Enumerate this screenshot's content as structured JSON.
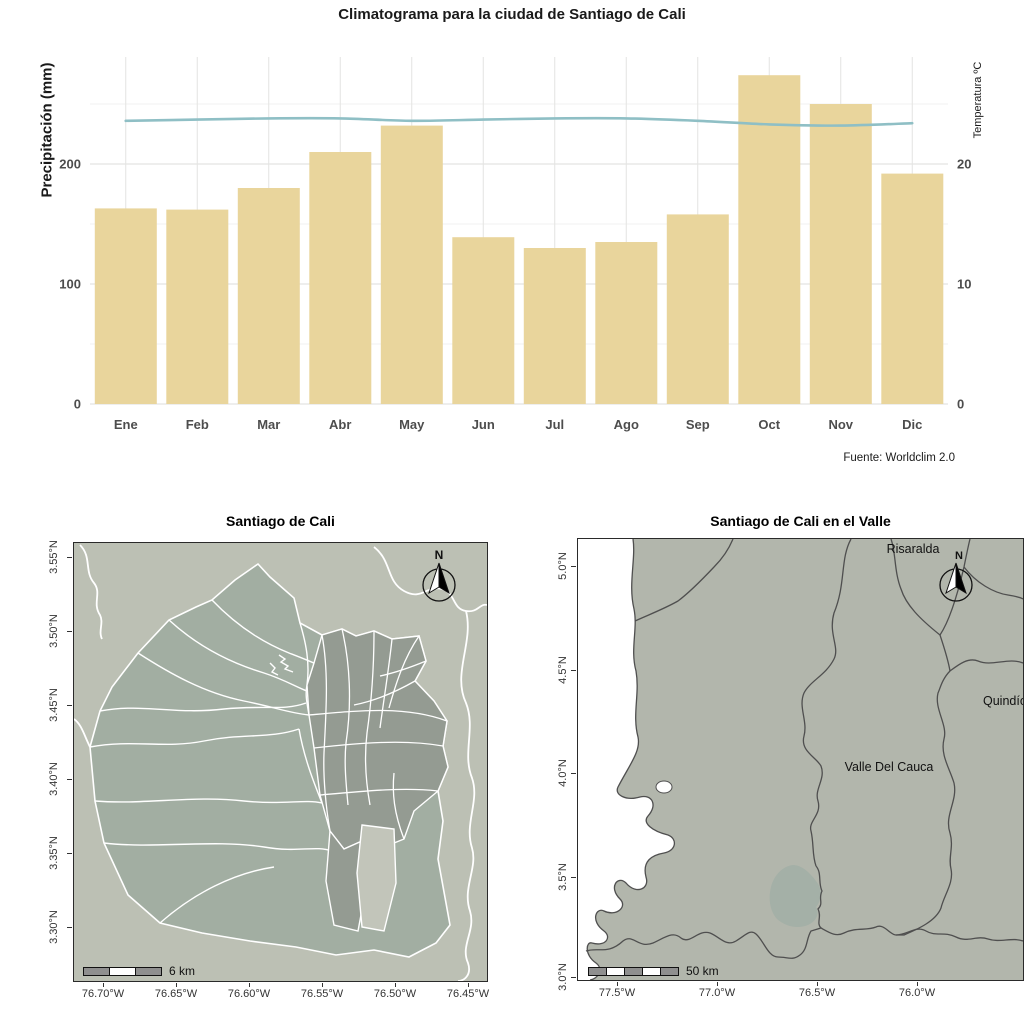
{
  "chart_data": {
    "type": "bar+line",
    "title": "Climatograma para la ciudad de Santiago de Cali",
    "categories": [
      "Ene",
      "Feb",
      "Mar",
      "Abr",
      "May",
      "Jun",
      "Jul",
      "Ago",
      "Sep",
      "Oct",
      "Nov",
      "Dic"
    ],
    "series": [
      {
        "name": "Precipitación (mm)",
        "type": "bar",
        "axis": "left",
        "values": [
          163,
          162,
          180,
          210,
          232,
          139,
          130,
          135,
          158,
          274,
          250,
          192
        ]
      },
      {
        "name": "Temperatura ºC",
        "type": "line",
        "axis": "right",
        "values": [
          23.6,
          23.7,
          23.8,
          23.8,
          23.6,
          23.7,
          23.8,
          23.8,
          23.6,
          23.3,
          23.2,
          23.4
        ]
      }
    ],
    "ylabel_left": "Precipitación (mm)",
    "ylabel_right": "Temperatura ºC",
    "y_left_ticks": [
      "0",
      "100",
      "200"
    ],
    "y_left_tick_values": [
      0,
      100,
      200
    ],
    "y_left_minor_values": [
      50,
      150,
      250
    ],
    "y_right_ticks": [
      "0",
      "10",
      "20"
    ],
    "y_right_tick_values": [
      0,
      10,
      20
    ],
    "y_left_range": [
      0,
      289
    ],
    "y_right_range": [
      0,
      28.9
    ],
    "grid": true,
    "legend": "none",
    "caption": "Fuente: Worldclim 2.0",
    "colors": {
      "bar": "#e9d59c",
      "line": "#8fbfc5",
      "grid_major": "#e4e4e2",
      "grid_minor": "#f2f2f0",
      "tick_text": "#4d4d4d"
    }
  },
  "maps": {
    "left": {
      "title": "Santiago de Cali",
      "x_tick_labels": [
        "76.70°W",
        "76.65°W",
        "76.60°W",
        "76.55°W",
        "76.50°W",
        "76.45°W"
      ],
      "y_tick_labels": [
        "3.55°N",
        "3.50°N",
        "3.45°N",
        "3.40°N",
        "3.35°N",
        "3.30°N"
      ],
      "scalebar_label": "6 km",
      "north_label": "N",
      "colors": {
        "background": "#bcc0b4",
        "rural_fill": "#a2aea2",
        "urban_fill": "#949b92",
        "light_zone_fill": "#c2c5ba",
        "boundary": "#ffffff"
      }
    },
    "right": {
      "title": "Santiago de Cali en el Valle",
      "x_tick_labels": [
        "77.5°W",
        "77.0°W",
        "76.5°W",
        "76.0°W"
      ],
      "y_tick_labels": [
        "5.0°N",
        "4.5°N",
        "4.0°N",
        "3.5°N",
        "3.0°N"
      ],
      "labels": {
        "risaralda": "Risaralda",
        "quindio": "Quindío",
        "valle": "Valle Del Cauca"
      },
      "scalebar_label": "50 km",
      "north_label": "N",
      "colors": {
        "land": "#b2b6ac",
        "ocean": "#ffffff",
        "department_border": "#4f4f4f",
        "cali_fill": "#a4b0a7"
      }
    }
  }
}
